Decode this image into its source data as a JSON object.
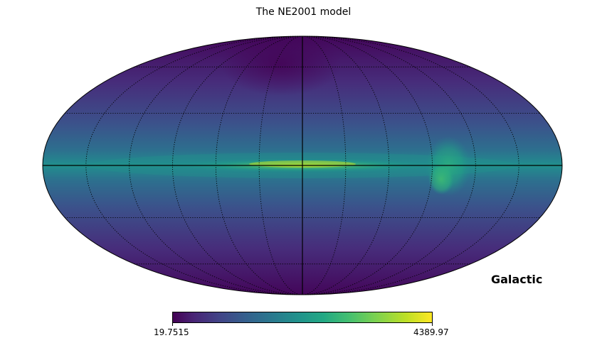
{
  "map": {
    "title": "The NE2001 model",
    "coordinate_system": "Galactic",
    "projection": "mollweide",
    "colormap": "viridis",
    "colorbar": {
      "min_label": "19.7515",
      "max_label": "4389.97"
    },
    "graticule": {
      "meridian_step_deg": 30,
      "parallel_step_deg": 30
    }
  }
}
